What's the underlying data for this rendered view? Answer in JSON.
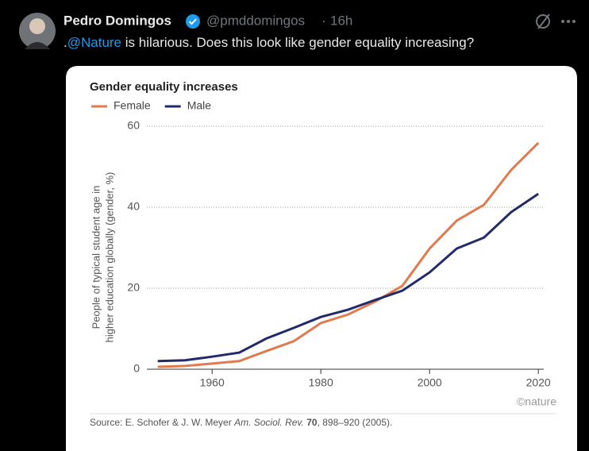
{
  "tweet": {
    "name": "Pedro Domingos",
    "handle": "@pmddomingos",
    "separator": "·",
    "time": "16h",
    "text": [
      ".",
      "@Nature",
      " is hilarious. Does this look like gender equality increasing?"
    ]
  },
  "chart_data": {
    "type": "line",
    "title": "Gender equality increases",
    "y_label": [
      "People of typical student age in",
      "higher education globally (gender, %)"
    ],
    "x": [
      1950,
      1955,
      1960,
      1965,
      1970,
      1975,
      1980,
      1985,
      1990,
      1995,
      2000,
      2005,
      2010,
      2015,
      2020
    ],
    "series": [
      {
        "name": "Female",
        "color": "#e07b4f",
        "values": [
          0.6,
          0.8,
          1.4,
          2.0,
          4.5,
          6.9,
          11.4,
          13.5,
          16.7,
          20.6,
          29.8,
          36.7,
          40.6,
          49.2,
          55.9
        ]
      },
      {
        "name": "Male",
        "color": "#232a6b",
        "values": [
          2.0,
          2.2,
          3.1,
          4.1,
          7.6,
          10.2,
          12.9,
          14.7,
          17.1,
          19.4,
          23.9,
          29.8,
          32.5,
          38.8,
          43.3
        ]
      }
    ],
    "xlim": [
      1948,
      2021
    ],
    "xticks": [
      1960,
      1980,
      2000,
      2020
    ],
    "ylim": [
      0,
      60
    ],
    "yticks": [
      0,
      20,
      40,
      60
    ],
    "grid": true,
    "source": [
      "Source: E. Schofer & J. W. Meyer ",
      "Am. Sociol. Rev.",
      " ",
      "70",
      ", 898–920 (2005)."
    ],
    "credit": "©nature"
  }
}
